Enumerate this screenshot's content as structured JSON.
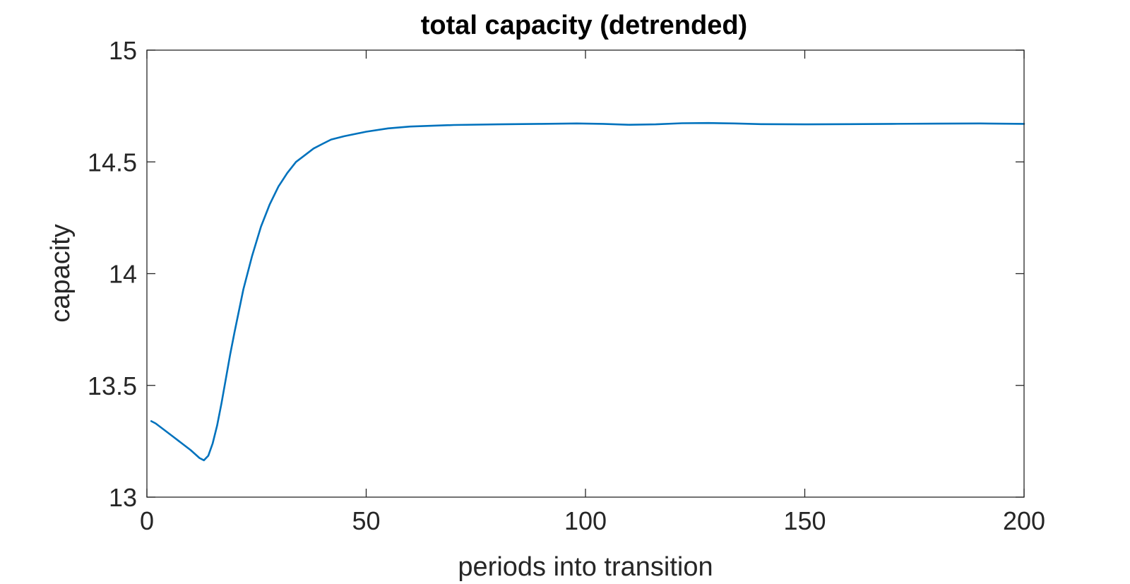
{
  "chart_data": {
    "type": "line",
    "title": "total capacity (detrended)",
    "xlabel": "periods into transition",
    "ylabel": "capacity",
    "xlim": [
      0,
      200
    ],
    "ylim": [
      13,
      15
    ],
    "xticks": [
      0,
      50,
      100,
      150,
      200
    ],
    "xtick_labels": [
      "0",
      "50",
      "100",
      "150",
      "200"
    ],
    "yticks": [
      13,
      13.5,
      14,
      14.5,
      15
    ],
    "ytick_labels": [
      "13",
      "13.5",
      "14",
      "14.5",
      "15"
    ],
    "grid": false,
    "line_color": "#0072BD",
    "series": [
      {
        "x": [
          1,
          2,
          4,
          6,
          8,
          10,
          12,
          13,
          14,
          15,
          16,
          17,
          18,
          19,
          20,
          22,
          24,
          26,
          28,
          30,
          32,
          34,
          36,
          38,
          40,
          42,
          45,
          50,
          55,
          60,
          70,
          80,
          90,
          98,
          104,
          110,
          116,
          122,
          128,
          134,
          140,
          150,
          160,
          170,
          180,
          190,
          200
        ],
        "y": [
          13.34,
          13.33,
          13.3,
          13.27,
          13.24,
          13.21,
          13.175,
          13.165,
          13.185,
          13.24,
          13.32,
          13.42,
          13.53,
          13.64,
          13.74,
          13.93,
          14.08,
          14.21,
          14.31,
          14.39,
          14.45,
          14.5,
          14.53,
          14.56,
          14.58,
          14.6,
          14.615,
          14.635,
          14.65,
          14.658,
          14.665,
          14.668,
          14.67,
          14.672,
          14.67,
          14.666,
          14.668,
          14.673,
          14.674,
          14.672,
          14.669,
          14.668,
          14.669,
          14.67,
          14.671,
          14.672,
          14.67
        ]
      }
    ]
  }
}
